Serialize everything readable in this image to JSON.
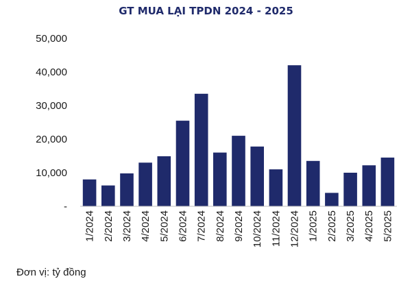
{
  "chart_data": {
    "type": "bar",
    "title": "GT MUA LẠI TPDN 2024 - 2025",
    "unit_note": "Đơn vị: tỷ đồng",
    "categories": [
      "1/2024",
      "2/2024",
      "3/2024",
      "4/2024",
      "5/2024",
      "6/2024",
      "7/2024",
      "8/2024",
      "9/2024",
      "10/2024",
      "11/2024",
      "12/2024",
      "1/2025",
      "2/2025",
      "3/2025",
      "4/2025",
      "5/2025"
    ],
    "values": [
      8000,
      6200,
      9800,
      13000,
      14900,
      25500,
      33500,
      16000,
      21000,
      17800,
      11000,
      42000,
      13500,
      4000,
      10000,
      12200,
      14500
    ],
    "yticks": [
      0,
      10000,
      20000,
      30000,
      40000,
      50000
    ],
    "ytick_labels": [
      "-",
      "10,000",
      "20,000",
      "30,000",
      "40,000",
      "50,000"
    ],
    "ylim": [
      0,
      50000
    ],
    "xlabel": "",
    "ylabel": "",
    "grid": false,
    "colors": {
      "bar": "#1f2a6b",
      "title": "#1f2a6b",
      "axis": "#bfbfbf"
    }
  }
}
